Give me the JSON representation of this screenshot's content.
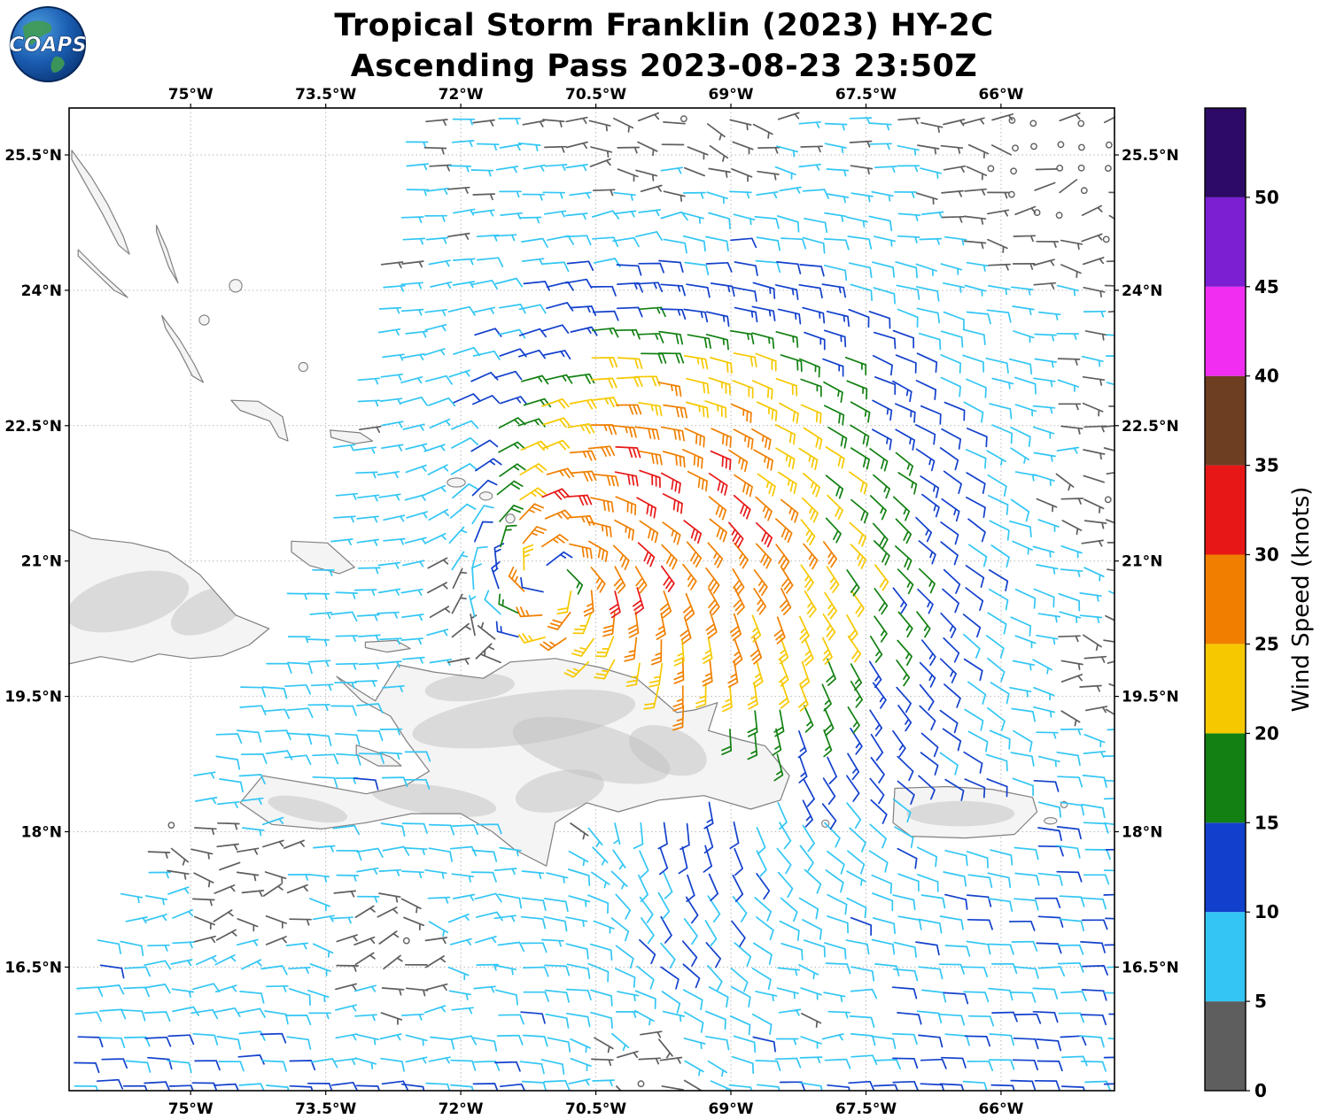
{
  "header": {
    "title_line1": "Tropical Storm Franklin (2023) HY-2C",
    "title_line2": "Ascending Pass 2023-08-23 23:50Z",
    "logo_text": "COAPS"
  },
  "axes": {
    "lon_ticks": [
      "75°W",
      "73.5°W",
      "72°W",
      "70.5°W",
      "69°W",
      "67.5°W",
      "66°W"
    ],
    "lon_tick_values": [
      -75,
      -73.5,
      -72,
      -70.5,
      -69,
      -67.5,
      -66
    ],
    "lat_ticks": [
      "25.5°N",
      "24°N",
      "22.5°N",
      "21°N",
      "19.5°N",
      "18°N",
      "16.5°N"
    ],
    "lat_tick_values": [
      25.5,
      24,
      22.5,
      21,
      19.5,
      18,
      16.5
    ],
    "lon_range": [
      -76.35,
      -64.74
    ],
    "lat_range": [
      15.13,
      26.02
    ]
  },
  "colorbar": {
    "label": "Wind Speed (knots)",
    "tick_labels": [
      "0",
      "5",
      "10",
      "15",
      "20",
      "25",
      "30",
      "35",
      "40",
      "45",
      "50"
    ],
    "tick_values": [
      0,
      5,
      10,
      15,
      20,
      25,
      30,
      35,
      40,
      45,
      50
    ],
    "range": [
      0,
      55
    ],
    "colors": [
      {
        "from": 0,
        "to": 5,
        "hex": "#5e5e5e"
      },
      {
        "from": 5,
        "to": 10,
        "hex": "#33c6f4"
      },
      {
        "from": 10,
        "to": 15,
        "hex": "#1240cc"
      },
      {
        "from": 15,
        "to": 20,
        "hex": "#128012"
      },
      {
        "from": 20,
        "to": 25,
        "hex": "#f6c800"
      },
      {
        "from": 25,
        "to": 30,
        "hex": "#f07f00"
      },
      {
        "from": 30,
        "to": 35,
        "hex": "#e81717"
      },
      {
        "from": 35,
        "to": 40,
        "hex": "#6e3e20"
      },
      {
        "from": 40,
        "to": 45,
        "hex": "#f02df0"
      },
      {
        "from": 45,
        "to": 50,
        "hex": "#7c1ed2"
      },
      {
        "from": 50,
        "to": 55,
        "hex": "#2d0a66"
      }
    ]
  },
  "chart_data": {
    "type": "wind_barb_map",
    "title": "Tropical Storm Franklin (2023) HY-2C",
    "subtitle": "Ascending Pass 2023-08-23 23:50Z",
    "units": "knots",
    "lon_range": [
      -76.35,
      -64.74
    ],
    "lat_range": [
      15.13,
      26.02
    ],
    "barb_grid_deg": 0.26,
    "speed_bins_kt": [
      0,
      5,
      10,
      15,
      20,
      25,
      30,
      35,
      40,
      45,
      50,
      55
    ],
    "max_observed_speed_kt": 32,
    "storm": {
      "name": "Franklin",
      "center_lon": -71.0,
      "center_lat": 20.8,
      "rotation": "counterclockwise",
      "max_wind_kt": 26,
      "eye_radius_deg": 0.35,
      "plateau_rho": 0.34,
      "decay_rate": 2.2,
      "outer_cutoff_deg": 5.2,
      "size_base": 3.55,
      "size_east": 3.25,
      "size_north": 0.39,
      "size_ew2": 0.6,
      "inflow_deg": 18,
      "hotspot": {
        "dlon": 0.9,
        "dlat": -0.05,
        "kt": 5,
        "sigma_deg": 0.22
      }
    },
    "ambient": {
      "flow_toward_deg": 180,
      "base_kt": 5,
      "south_boost_kt": 5.5,
      "pivot_lat": 20
    },
    "feeder_band": {
      "lon": -69.6,
      "lat": 16.8,
      "sigma_lon": 0.9,
      "sigma_lat": 1.6,
      "kt": 7,
      "flow_toward_deg": 80
    },
    "calm_patches": [
      {
        "lon": -74.6,
        "lat": 17.3,
        "radius_deg": 1.1,
        "strength": 0.74
      },
      {
        "lon": -72.9,
        "lat": 16.6,
        "radius_deg": 1.1,
        "strength": 0.74
      },
      {
        "lon": -75.3,
        "lat": 17.9,
        "radius_deg": 0.8,
        "strength": 0.7
      },
      {
        "lon": -69.6,
        "lat": 26.1,
        "radius_deg": 1.3,
        "strength": 0.72
      },
      {
        "lon": -65.5,
        "lat": 25.4,
        "radius_deg": 1.2,
        "strength": 0.74
      },
      {
        "lon": -64.8,
        "lat": 24.6,
        "radius_deg": 0.8,
        "strength": 0.6
      },
      {
        "lon": -64.75,
        "lat": 21.8,
        "radius_deg": 1.0,
        "strength": 0.7
      },
      {
        "lon": -65.1,
        "lat": 19.7,
        "radius_deg": 0.8,
        "strength": 0.65
      },
      {
        "lon": -70.0,
        "lat": 15.3,
        "radius_deg": 0.9,
        "strength": 0.74
      },
      {
        "lon": -68.2,
        "lat": 16.05,
        "radius_deg": 0.5,
        "strength": 0.55
      }
    ],
    "swath_left_edge": {
      "lon_at_lat21": -73.7,
      "slope_north": 0.23,
      "slope_south": 0.58
    }
  },
  "map": {
    "coastline_color": "#808080",
    "land_fill": "#f4f4f4",
    "terrain_shade": "#bfbfbf",
    "features": {
      "cuba": [
        [
          -76.6,
          21.45
        ],
        [
          -76.1,
          21.25
        ],
        [
          -75.65,
          21.2
        ],
        [
          -75.25,
          21.1
        ],
        [
          -74.9,
          20.85
        ],
        [
          -74.5,
          20.4
        ],
        [
          -74.13,
          20.25
        ],
        [
          -74.35,
          20.07
        ],
        [
          -74.65,
          19.95
        ],
        [
          -75.0,
          19.92
        ],
        [
          -75.35,
          19.97
        ],
        [
          -75.65,
          19.88
        ],
        [
          -76.0,
          19.94
        ],
        [
          -76.35,
          19.86
        ],
        [
          -76.6,
          19.8
        ]
      ],
      "hispaniola": [
        [
          -73.38,
          19.72
        ],
        [
          -72.95,
          19.45
        ],
        [
          -72.7,
          19.85
        ],
        [
          -72.3,
          19.77
        ],
        [
          -71.75,
          19.7
        ],
        [
          -71.45,
          19.88
        ],
        [
          -70.95,
          19.92
        ],
        [
          -70.45,
          19.82
        ],
        [
          -70.05,
          19.7
        ],
        [
          -69.87,
          19.55
        ],
        [
          -69.6,
          19.32
        ],
        [
          -69.4,
          19.35
        ],
        [
          -69.15,
          19.43
        ],
        [
          -69.25,
          19.12
        ],
        [
          -68.9,
          19.02
        ],
        [
          -68.62,
          18.95
        ],
        [
          -68.35,
          18.62
        ],
        [
          -68.45,
          18.35
        ],
        [
          -68.78,
          18.25
        ],
        [
          -69.3,
          18.4
        ],
        [
          -69.8,
          18.35
        ],
        [
          -70.25,
          18.22
        ],
        [
          -70.6,
          18.32
        ],
        [
          -70.95,
          18.1
        ],
        [
          -71.05,
          17.62
        ],
        [
          -71.4,
          17.8
        ],
        [
          -71.65,
          18.0
        ],
        [
          -72.0,
          18.2
        ],
        [
          -72.55,
          18.2
        ],
        [
          -73.05,
          18.1
        ],
        [
          -73.55,
          18.03
        ],
        [
          -74.1,
          18.08
        ],
        [
          -74.45,
          18.32
        ],
        [
          -74.2,
          18.62
        ],
        [
          -73.6,
          18.52
        ],
        [
          -73.05,
          18.42
        ],
        [
          -72.6,
          18.52
        ],
        [
          -72.35,
          18.67
        ],
        [
          -72.6,
          19.0
        ],
        [
          -72.78,
          19.28
        ],
        [
          -73.1,
          19.45
        ]
      ],
      "puerto_rico": [
        [
          -67.18,
          18.48
        ],
        [
          -66.6,
          18.5
        ],
        [
          -66.1,
          18.47
        ],
        [
          -65.65,
          18.38
        ],
        [
          -65.6,
          18.22
        ],
        [
          -65.85,
          17.97
        ],
        [
          -66.4,
          17.93
        ],
        [
          -67.0,
          17.95
        ],
        [
          -67.2,
          18.1
        ]
      ],
      "eleuthera": [
        [
          -76.32,
          25.55
        ],
        [
          -76.1,
          25.25
        ],
        [
          -75.92,
          24.95
        ],
        [
          -75.75,
          24.6
        ],
        [
          -75.68,
          24.4
        ],
        [
          -75.8,
          24.5
        ],
        [
          -75.98,
          24.85
        ],
        [
          -76.18,
          25.2
        ],
        [
          -76.32,
          25.45
        ]
      ],
      "cat_island": [
        [
          -75.38,
          24.72
        ],
        [
          -75.26,
          24.45
        ],
        [
          -75.18,
          24.2
        ],
        [
          -75.14,
          24.08
        ],
        [
          -75.24,
          24.25
        ],
        [
          -75.33,
          24.5
        ],
        [
          -75.38,
          24.65
        ]
      ],
      "long_island": [
        [
          -75.32,
          23.72
        ],
        [
          -75.12,
          23.45
        ],
        [
          -74.96,
          23.18
        ],
        [
          -74.86,
          22.98
        ],
        [
          -74.98,
          23.05
        ],
        [
          -75.12,
          23.32
        ],
        [
          -75.28,
          23.58
        ]
      ],
      "exuma": [
        [
          -76.25,
          24.45
        ],
        [
          -76.0,
          24.2
        ],
        [
          -75.78,
          24.0
        ],
        [
          -75.7,
          23.92
        ],
        [
          -75.85,
          24.0
        ],
        [
          -76.08,
          24.22
        ],
        [
          -76.25,
          24.38
        ]
      ],
      "crooked_acklins": [
        [
          -74.55,
          22.78
        ],
        [
          -74.25,
          22.77
        ],
        [
          -73.98,
          22.6
        ],
        [
          -73.92,
          22.33
        ],
        [
          -74.02,
          22.37
        ],
        [
          -74.12,
          22.55
        ],
        [
          -74.45,
          22.67
        ]
      ],
      "mayaguana": [
        [
          -73.45,
          22.45
        ],
        [
          -73.12,
          22.42
        ],
        [
          -72.98,
          22.33
        ],
        [
          -73.18,
          22.3
        ],
        [
          -73.44,
          22.37
        ]
      ],
      "great_inagua": [
        [
          -73.88,
          21.22
        ],
        [
          -73.48,
          21.2
        ],
        [
          -73.18,
          20.93
        ],
        [
          -73.35,
          20.86
        ],
        [
          -73.68,
          20.95
        ],
        [
          -73.88,
          21.1
        ]
      ],
      "tortuga": [
        [
          -73.06,
          20.1
        ],
        [
          -72.72,
          20.12
        ],
        [
          -72.56,
          20.03
        ],
        [
          -72.82,
          19.99
        ],
        [
          -73.06,
          20.04
        ]
      ],
      "gonave": [
        [
          -73.16,
          18.96
        ],
        [
          -72.78,
          18.83
        ],
        [
          -72.66,
          18.73
        ],
        [
          -72.92,
          18.73
        ],
        [
          -73.16,
          18.86
        ]
      ]
    },
    "island_dots": [
      [
        -74.5,
        24.05,
        0.07
      ],
      [
        -74.85,
        23.67,
        0.055
      ],
      [
        -73.75,
        23.15,
        0.05
      ],
      [
        -72.05,
        21.87,
        0.1,
        0.05
      ],
      [
        -71.72,
        21.72,
        0.07,
        0.045
      ],
      [
        -71.45,
        21.47,
        0.05
      ],
      [
        -67.95,
        18.09,
        0.04
      ],
      [
        -65.45,
        18.12,
        0.07,
        0.035
      ],
      [
        -65.3,
        18.3,
        0.035
      ]
    ],
    "terrain_spots": [
      [
        -71.3,
        19.25,
        1.25,
        0.28,
        -8
      ],
      [
        -70.55,
        18.9,
        0.9,
        0.3,
        15
      ],
      [
        -72.3,
        18.35,
        0.7,
        0.16,
        8
      ],
      [
        -73.7,
        18.25,
        0.45,
        0.12,
        12
      ],
      [
        -70.9,
        18.45,
        0.5,
        0.22,
        -12
      ],
      [
        -69.7,
        18.9,
        0.45,
        0.25,
        20
      ],
      [
        -71.9,
        19.6,
        0.5,
        0.15,
        -5
      ],
      [
        -75.7,
        20.55,
        0.7,
        0.3,
        -15
      ],
      [
        -74.8,
        20.45,
        0.45,
        0.22,
        -25
      ],
      [
        -66.45,
        18.2,
        0.6,
        0.14,
        0
      ]
    ]
  }
}
